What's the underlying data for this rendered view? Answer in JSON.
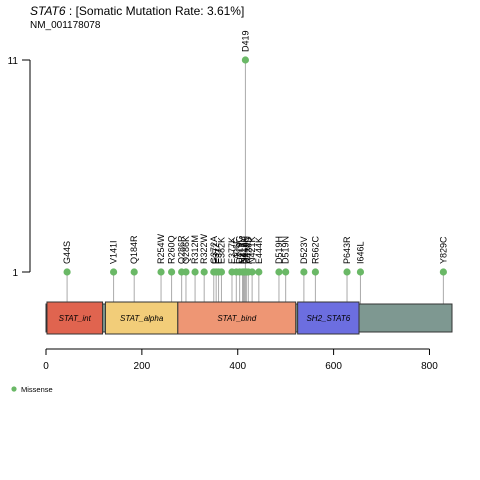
{
  "header": {
    "gene": "STAT6",
    "rate_text": " : [Somatic Mutation Rate: 3.61%]",
    "transcript": "NM_001178078"
  },
  "colors": {
    "lollipop": "#6ab866",
    "stem": "#aaaaaa",
    "backbone": "#7e9891",
    "domain_border": "#333333"
  },
  "chart_data": {
    "type": "lollipop",
    "xlim": [
      0,
      847
    ],
    "x_ticks": [
      0,
      200,
      400,
      600,
      800
    ],
    "y_ticks": [
      1,
      11
    ],
    "ylim": [
      0,
      11
    ],
    "protein_length": 847,
    "domains": [
      {
        "name": "STAT_int",
        "start": 2,
        "end": 118,
        "color": "#e0644f"
      },
      {
        "name": "STAT_alpha",
        "start": 124,
        "end": 275,
        "color": "#f2cd79"
      },
      {
        "name": "STAT_bind",
        "start": 275,
        "end": 521,
        "color": "#ee9674"
      },
      {
        "name": "SH2_STAT6",
        "start": 525,
        "end": 653,
        "color": "#6c6ee0"
      }
    ],
    "mutations": [
      {
        "label": "G44S",
        "pos": 44,
        "count": 1
      },
      {
        "label": "V141I",
        "pos": 141,
        "count": 1
      },
      {
        "label": "Q184R",
        "pos": 184,
        "count": 1
      },
      {
        "label": "R254W",
        "pos": 240,
        "count": 1
      },
      {
        "label": "R260Q",
        "pos": 262,
        "count": 1
      },
      {
        "label": "Q286R",
        "pos": 283,
        "count": 1
      },
      {
        "label": "Q286K",
        "pos": 292,
        "count": 1
      },
      {
        "label": "R312M",
        "pos": 311,
        "count": 1
      },
      {
        "label": "R322W",
        "pos": 330,
        "count": 1
      },
      {
        "label": "G372A",
        "pos": 350,
        "count": 1
      },
      {
        "label": "E372",
        "pos": 355,
        "count": 1
      },
      {
        "label": "E37",
        "pos": 360,
        "count": 1
      },
      {
        "label": "E382K",
        "pos": 366,
        "count": 1
      },
      {
        "label": "E377K",
        "pos": 388,
        "count": 1
      },
      {
        "label": "L406F",
        "pos": 397,
        "count": 1
      },
      {
        "label": "D419G",
        "pos": 404,
        "count": 1
      },
      {
        "label": "N417Y",
        "pos": 410,
        "count": 1
      },
      {
        "label": "D419H",
        "pos": 414,
        "count": 1
      },
      {
        "label": "D419",
        "pos": 416,
        "count": 11
      },
      {
        "label": "N417",
        "pos": 412,
        "count": 1
      },
      {
        "label": "D419N",
        "pos": 418,
        "count": 1
      },
      {
        "label": "A426S",
        "pos": 422,
        "count": 1
      },
      {
        "label": "N421K",
        "pos": 430,
        "count": 1
      },
      {
        "label": "E444K",
        "pos": 444,
        "count": 1
      },
      {
        "label": "D519H",
        "pos": 486,
        "count": 1
      },
      {
        "label": "D519N",
        "pos": 500,
        "count": 1
      },
      {
        "label": "D523V",
        "pos": 538,
        "count": 1
      },
      {
        "label": "R562C",
        "pos": 562,
        "count": 1
      },
      {
        "label": "P643R",
        "pos": 628,
        "count": 1
      },
      {
        "label": "I646L",
        "pos": 656,
        "count": 1
      },
      {
        "label": "Y829C",
        "pos": 829,
        "count": 1
      }
    ],
    "legend": [
      {
        "label": "Missense",
        "color": "#6ab866"
      }
    ]
  }
}
